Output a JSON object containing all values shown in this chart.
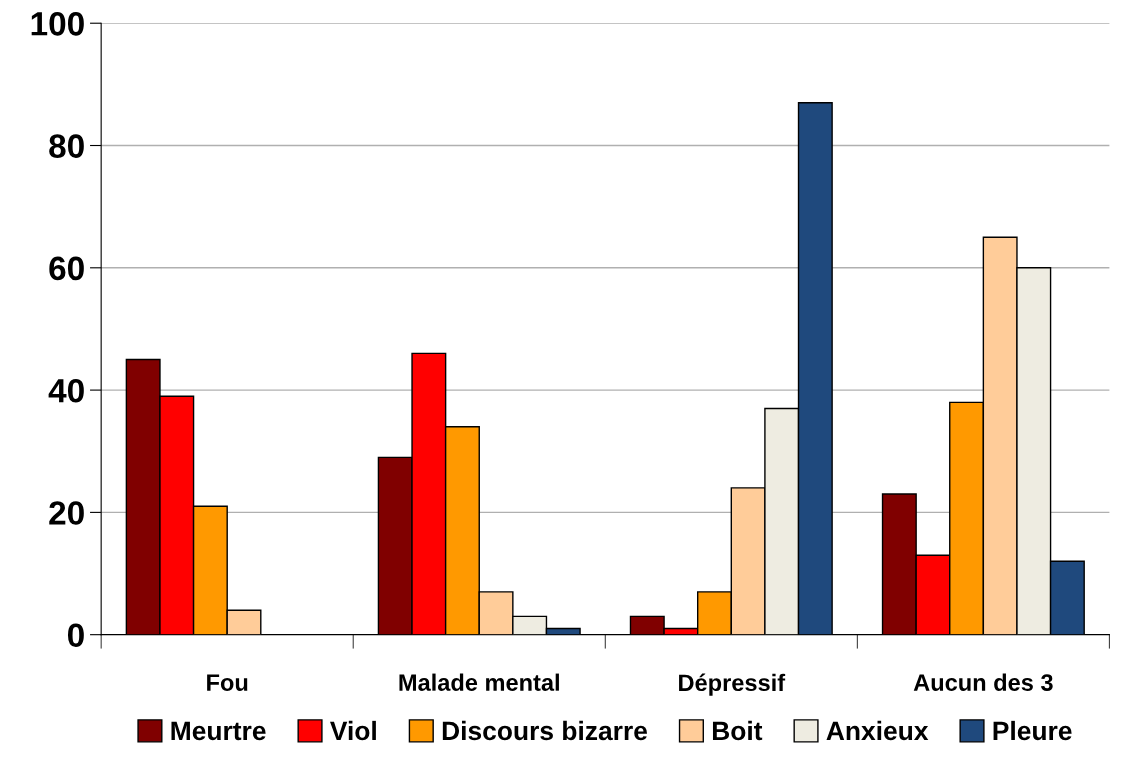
{
  "chart_data": {
    "type": "bar",
    "categories": [
      "Fou",
      "Malade mental",
      "Dépressif",
      "Aucun des 3"
    ],
    "series": [
      {
        "name": "Meurtre",
        "color": "#800000",
        "values": [
          45,
          29,
          3,
          23
        ]
      },
      {
        "name": "Viol",
        "color": "#ff0000",
        "values": [
          39,
          46,
          1,
          13
        ]
      },
      {
        "name": "Discours bizarre",
        "color": "#ff9900",
        "values": [
          21,
          34,
          7,
          38
        ]
      },
      {
        "name": "Boit",
        "color": "#ffcc99",
        "values": [
          4,
          7,
          24,
          65
        ]
      },
      {
        "name": "Anxieux",
        "color": "#eeece1",
        "values": [
          null,
          3,
          37,
          60
        ]
      },
      {
        "name": "Pleure",
        "color": "#1f497d",
        "values": [
          null,
          1,
          87,
          12
        ]
      }
    ],
    "ylim": [
      0,
      100
    ],
    "yticks": [
      0,
      20,
      40,
      60,
      80,
      100
    ],
    "grid": "y",
    "legend": "bottom"
  }
}
